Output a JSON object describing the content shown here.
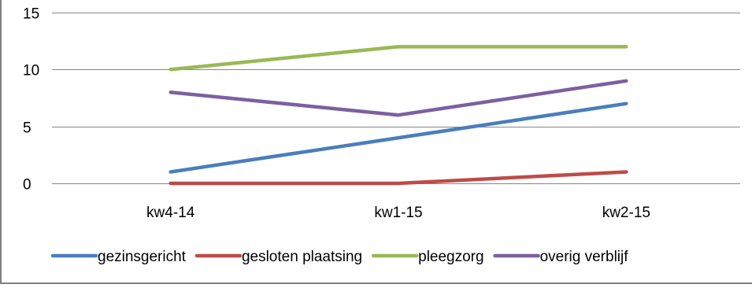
{
  "chart_data": {
    "type": "line",
    "title": "",
    "xlabel": "",
    "ylabel": "",
    "categories": [
      "kw4-14",
      "kw1-15",
      "kw2-15"
    ],
    "ylim": [
      0,
      15
    ],
    "yticks": [
      "0",
      "5",
      "10",
      "15"
    ],
    "grid": true,
    "legend_position": "bottom",
    "series": [
      {
        "name": "gezinsgericht",
        "values": [
          1,
          4,
          7
        ],
        "color": "#4a7ebb"
      },
      {
        "name": "gesloten plaatsing",
        "values": [
          0,
          0,
          1
        ],
        "color": "#be4b48"
      },
      {
        "name": "pleegzorg",
        "values": [
          10,
          12,
          12
        ],
        "color": "#98b954"
      },
      {
        "name": "overig verblijf",
        "values": [
          8,
          6,
          9
        ],
        "color": "#7d60a0"
      }
    ]
  }
}
